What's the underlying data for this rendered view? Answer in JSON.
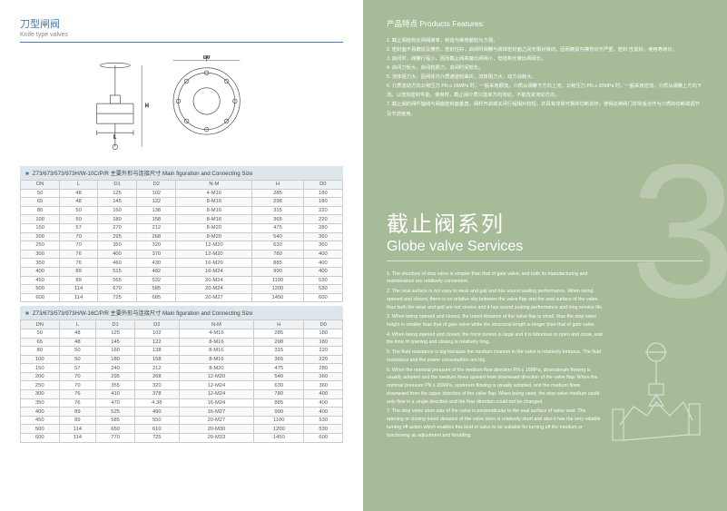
{
  "left": {
    "title_cn": "刀型闸阀",
    "title_en": "Knife type valves",
    "diagram_labels": {
      "D0": "D0",
      "L": "L",
      "H": "H"
    },
    "table1": {
      "title": "Z73/673/573/973H/W-10C/P/R 主要外形与连接尺寸 Main figuration and Connecting Size",
      "columns": [
        "DN",
        "L",
        "D1",
        "D2",
        "N-M",
        "H",
        "D0"
      ],
      "rows": [
        [
          "50",
          "48",
          "125",
          "102",
          "4-M16",
          "285",
          "180"
        ],
        [
          "65",
          "48",
          "145",
          "122",
          "8-M16",
          "298",
          "180"
        ],
        [
          "80",
          "50",
          "160",
          "138",
          "8-M16",
          "315",
          "220"
        ],
        [
          "100",
          "50",
          "180",
          "158",
          "8-M16",
          "365",
          "220"
        ],
        [
          "150",
          "57",
          "270",
          "212",
          "8-M20",
          "475",
          "280"
        ],
        [
          "200",
          "70",
          "295",
          "268",
          "8-M20",
          "540",
          "360"
        ],
        [
          "250",
          "70",
          "350",
          "320",
          "12-M20",
          "630",
          "360"
        ],
        [
          "300",
          "76",
          "400",
          "370",
          "12-M20",
          "780",
          "400"
        ],
        [
          "350",
          "76",
          "460",
          "430",
          "16-M20",
          "885",
          "400"
        ],
        [
          "400",
          "89",
          "515",
          "482",
          "16-M24",
          "990",
          "400"
        ],
        [
          "450",
          "89",
          "565",
          "532",
          "20-M24",
          "1100",
          "530"
        ],
        [
          "500",
          "114",
          "670",
          "585",
          "20-M24",
          "1200",
          "530"
        ],
        [
          "600",
          "114",
          "725",
          "685",
          "20-M27",
          "1450",
          "600"
        ]
      ]
    },
    "table2": {
      "title": "Z73/673/573/973H/W-16C/P/R 主要外形与连接尺寸 Main figuration and Connecting Size",
      "columns": [
        "DN",
        "L",
        "D1",
        "D2",
        "N-M",
        "H",
        "D0"
      ],
      "rows": [
        [
          "50",
          "48",
          "125",
          "102",
          "4-M16",
          "285",
          "180"
        ],
        [
          "65",
          "48",
          "145",
          "122",
          "8-M16",
          "298",
          "180"
        ],
        [
          "80",
          "50",
          "160",
          "138",
          "8-M16",
          "315",
          "220"
        ],
        [
          "100",
          "50",
          "180",
          "158",
          "8-M16",
          "365",
          "220"
        ],
        [
          "150",
          "57",
          "240",
          "212",
          "8-M20",
          "475",
          "280"
        ],
        [
          "200",
          "70",
          "295",
          "268",
          "12-M20",
          "540",
          "360"
        ],
        [
          "250",
          "70",
          "355",
          "320",
          "12-M24",
          "630",
          "360"
        ],
        [
          "300",
          "76",
          "410",
          "378",
          "12-M24",
          "780",
          "400"
        ],
        [
          "350",
          "76",
          "470",
          "4.38",
          "16-M24",
          "885",
          "400"
        ],
        [
          "400",
          "89",
          "525",
          "490",
          "16-M27",
          "990",
          "400"
        ],
        [
          "450",
          "89",
          "585",
          "550",
          "20-M27",
          "1100",
          "530"
        ],
        [
          "500",
          "114",
          "650",
          "610",
          "20-M30",
          "1200",
          "530"
        ],
        [
          "600",
          "114",
          "770",
          "725",
          "20-M33",
          "1450",
          "600"
        ]
      ]
    }
  },
  "right": {
    "features_title": "产品特点 Products Features:",
    "features": [
      "1. 截止阀结构比闸阀简单，制造与维修都较为方便。",
      "2. 密封面不易磨损及擦伤，密封性好，启闭时阀瓣与阀体密封面之间无相对滑动，因而磨损与擦伤均不严重，密封 性能好，使用寿命长。",
      "3. 启闭时，阀瓣行程小，因而截止阀高度比闸阀小，但结构长度比闸阀长。",
      "4. 启闭力矩大，启闭较费力，启闭时间较长。",
      "5. 流体阻力大，因阀体内介质通道较曲折，流体阻力大，动力消耗大。",
      "6. 介质流动方向公称压力 PN ≤ 16MPa 时，一般采用顺流，介质从阀瓣下方向上流；公称压力 PN ≥ 20MPa 时，一般采用逆流，介质从阀瓣上方向下流。以增加密封件能。使用时，截止阀介质只能单方向流动，不能改变流动方向。",
      "7. 截止阀的阀杆轴线与阀座密封面垂直。阀杆开启或关闭行程相对较短，并具有非常可靠的切断动作，使得这种阀门非常适合作为介质的切断或调节及节流使用。"
    ],
    "big_number": "3",
    "series_cn": "截止阀系列",
    "series_en": "Globe valve Services",
    "desc": [
      "1. The structure of stop valve is simpler than that of gate valve, and both its manufacturing and maintenance are relatively convenient.",
      "2. The seal surface is not easy to wear and gall and has sound sealing performance. When being opened and closed, there is no relative slip between the valve flap and the seal surface of the valve, thus both the wear and gall are not severe and it has sound sealing performance and long service life.",
      "3. When being opened and closed, the travel distance of the valve flap is small, thus the stop valve height is smaller than that of gate valve while the structural length is longer than that of gate valve.",
      "4. When being opened and closed, the force torsion is large and it is laborious to open and close, and the time of opening and closing is relatively long.",
      "5. The fluid resistance is big because the medium channel in the valve is relatively tortuous. The fluid resistance and the power consumption are big.",
      "6. When the nominal pressure of the medium flow direction PN ≤ 16MPa, downstream flowing is usually adopted and the medium flows upward from downward direction of the valve flap; When the nominal pressure PN ≥ 20MPa, upstream flowing is usually adopted, and the medium flows downward from the upper direction of the valve flap. When being used, the stop valve medium could only flow in a single direction and the flow direction could not be changed.",
      "7. The stop valve stem axis of the valve is perpendicular to the seal surface of valve seat. The opening or closing travel distance of the valve stem is relatively short and also it has the very reliable turning off action which enables this kind of valve to be suitable for turning off the medium or functioning as adjustment and throttling."
    ]
  },
  "colors": {
    "blue": "#4a7aa8",
    "green_bg": "#a8bb98",
    "thead_bg": "#eef2f4",
    "title_bg": "#dde6ea"
  }
}
